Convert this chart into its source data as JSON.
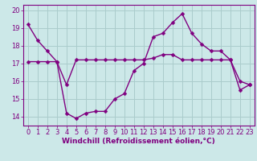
{
  "line1_x": [
    0,
    1,
    2,
    3,
    4,
    5,
    6,
    7,
    8,
    9,
    10,
    11,
    12,
    13,
    14,
    15,
    16,
    17,
    18,
    19,
    20,
    21,
    22,
    23
  ],
  "line1_y": [
    19.2,
    18.3,
    17.7,
    17.1,
    14.2,
    13.9,
    14.2,
    14.3,
    14.3,
    15.0,
    15.3,
    16.6,
    17.0,
    18.5,
    18.7,
    19.3,
    19.8,
    18.7,
    18.1,
    17.7,
    17.7,
    17.2,
    15.5,
    15.8
  ],
  "line2_x": [
    0,
    1,
    2,
    3,
    4,
    5,
    6,
    7,
    8,
    9,
    10,
    11,
    12,
    13,
    14,
    15,
    16,
    17,
    18,
    19,
    20,
    21,
    22,
    23
  ],
  "line2_y": [
    17.1,
    17.1,
    17.1,
    17.1,
    15.8,
    17.2,
    17.2,
    17.2,
    17.2,
    17.2,
    17.2,
    17.2,
    17.2,
    17.3,
    17.5,
    17.5,
    17.2,
    17.2,
    17.2,
    17.2,
    17.2,
    17.2,
    16.0,
    15.8
  ],
  "line_color": "#800080",
  "bg_color": "#cce8e8",
  "grid_color": "#aacccc",
  "xlabel": "Windchill (Refroidissement éolien,°C)",
  "ylim": [
    13.5,
    20.3
  ],
  "xlim": [
    -0.5,
    23.5
  ],
  "yticks": [
    14,
    15,
    16,
    17,
    18,
    19,
    20
  ],
  "xticks": [
    0,
    1,
    2,
    3,
    4,
    5,
    6,
    7,
    8,
    9,
    10,
    11,
    12,
    13,
    14,
    15,
    16,
    17,
    18,
    19,
    20,
    21,
    22,
    23
  ],
  "markersize": 2.5,
  "linewidth": 1.0,
  "xlabel_fontsize": 6.5,
  "tick_fontsize": 6.0
}
